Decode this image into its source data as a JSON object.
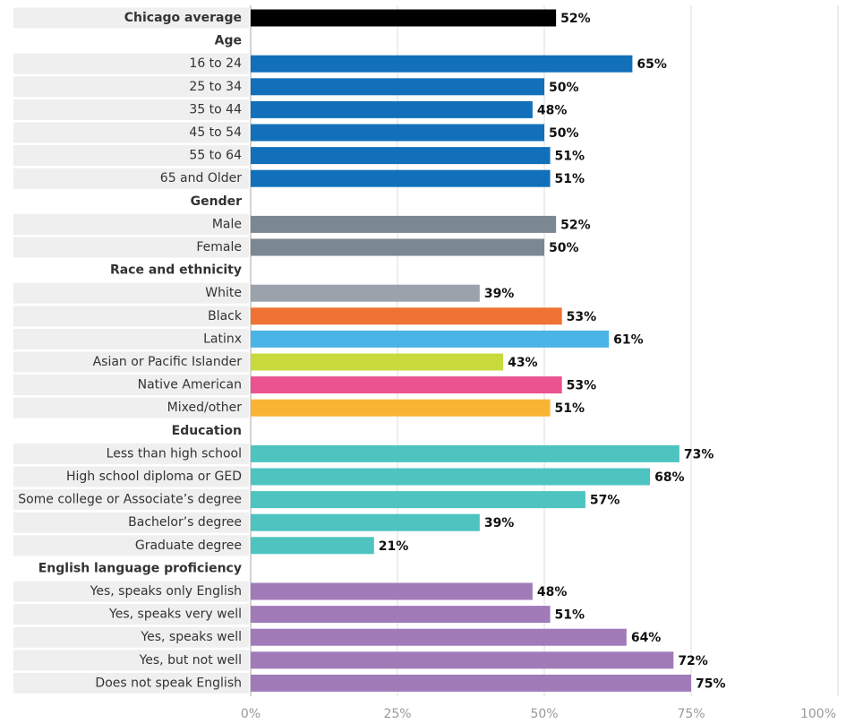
{
  "chart_data": {
    "type": "bar",
    "orientation": "horizontal",
    "xlim": [
      0,
      100
    ],
    "xticks": [
      {
        "value": 0,
        "label": "0%"
      },
      {
        "value": 25,
        "label": "25%"
      },
      {
        "value": 50,
        "label": "50%"
      },
      {
        "value": 75,
        "label": "75%"
      },
      {
        "value": 100,
        "label": "100%"
      }
    ],
    "grid": true,
    "groups": [
      {
        "categories": [
          "Chicago average"
        ],
        "values": [
          52
        ],
        "value_labels": [
          "52%"
        ],
        "colors": [
          "#000000"
        ]
      },
      {
        "name": "Age",
        "categories": [
          "16 to 24",
          "25 to 34",
          "35 to 44",
          "45 to 54",
          "55 to 64",
          "65 and Older"
        ],
        "values": [
          65,
          50,
          48,
          50,
          51,
          51
        ],
        "value_labels": [
          "65%",
          "50%",
          "48%",
          "50%",
          "51%",
          "51%"
        ],
        "colors": [
          "#1170b9",
          "#1170b9",
          "#1170b9",
          "#1170b9",
          "#1170b9",
          "#1170b9"
        ]
      },
      {
        "name": "Gender",
        "categories": [
          "Male",
          "Female"
        ],
        "values": [
          52,
          50
        ],
        "value_labels": [
          "52%",
          "50%"
        ],
        "colors": [
          "#7b8791",
          "#7b8791"
        ]
      },
      {
        "name": "Race and ethnicity",
        "categories": [
          "White",
          "Black",
          "Latinx",
          "Asian or Pacific Islander",
          "Native American",
          "Mixed/other"
        ],
        "values": [
          39,
          53,
          61,
          43,
          53,
          51
        ],
        "value_labels": [
          "39%",
          "53%",
          "61%",
          "43%",
          "53%",
          "51%"
        ],
        "colors": [
          "#9aa3ab",
          "#f07232",
          "#4bb4e6",
          "#c9da3c",
          "#ea5290",
          "#f9b434"
        ]
      },
      {
        "name": "Education",
        "categories": [
          "Less than high school",
          "High school diploma or GED",
          "Some college or Associate’s degree",
          "Bachelor’s degree",
          "Graduate degree"
        ],
        "values": [
          73,
          68,
          57,
          39,
          21
        ],
        "value_labels": [
          "73%",
          "68%",
          "57%",
          "39%",
          "21%"
        ],
        "colors": [
          "#4dc4c0",
          "#4dc4c0",
          "#4dc4c0",
          "#4dc4c0",
          "#4dc4c0"
        ]
      },
      {
        "name": "English language proficiency",
        "categories": [
          "Yes, speaks only English",
          "Yes, speaks very well",
          "Yes, speaks well",
          "Yes, but not well",
          "Does not speak English"
        ],
        "values": [
          48,
          51,
          64,
          72,
          75
        ],
        "value_labels": [
          "48%",
          "51%",
          "64%",
          "72%",
          "75%"
        ],
        "colors": [
          "#a07bb8",
          "#a07bb8",
          "#a07bb8",
          "#a07bb8",
          "#a07bb8"
        ]
      }
    ]
  }
}
